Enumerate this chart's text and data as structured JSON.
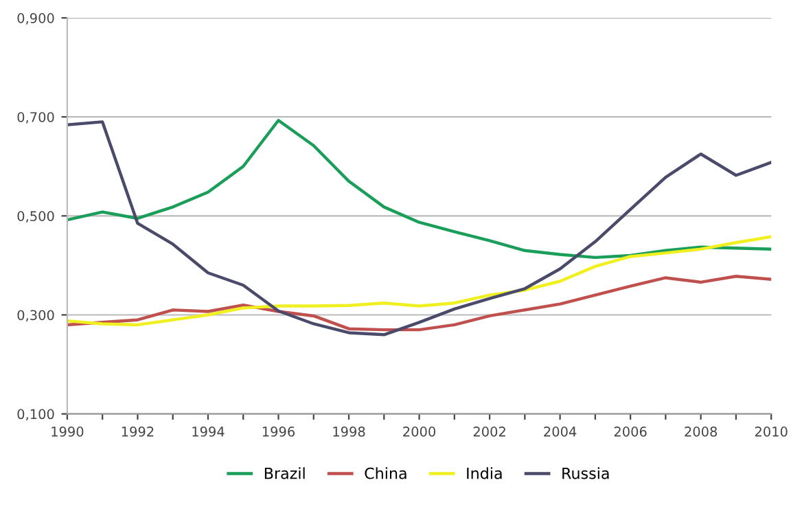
{
  "chart_data": {
    "type": "line",
    "x": [
      1990,
      1991,
      1992,
      1993,
      1994,
      1995,
      1996,
      1997,
      1998,
      1999,
      2000,
      2001,
      2002,
      2003,
      2004,
      2005,
      2006,
      2007,
      2008,
      2009,
      2010
    ],
    "series": [
      {
        "name": "Brazil",
        "color": "#1a9e5a",
        "values": [
          0.492,
          0.508,
          0.495,
          0.518,
          0.548,
          0.6,
          0.693,
          0.642,
          0.57,
          0.518,
          0.487,
          0.468,
          0.45,
          0.43,
          0.422,
          0.416,
          0.42,
          0.43,
          0.437,
          0.435,
          0.433
        ]
      },
      {
        "name": "China",
        "color": "#c0504d",
        "values": [
          0.28,
          0.285,
          0.29,
          0.31,
          0.307,
          0.32,
          0.307,
          0.298,
          0.272,
          0.27,
          0.27,
          0.28,
          0.298,
          0.31,
          0.322,
          0.34,
          0.358,
          0.375,
          0.366,
          0.378,
          0.372
        ]
      },
      {
        "name": "India",
        "color": "#f0f020",
        "values": [
          0.288,
          0.282,
          0.28,
          0.29,
          0.3,
          0.314,
          0.318,
          0.318,
          0.319,
          0.324,
          0.318,
          0.324,
          0.34,
          0.35,
          0.368,
          0.398,
          0.418,
          0.425,
          0.433,
          0.446,
          0.458
        ]
      },
      {
        "name": "Russia",
        "color": "#4a4a6a",
        "values": [
          0.684,
          0.69,
          0.485,
          0.443,
          0.385,
          0.36,
          0.308,
          0.282,
          0.264,
          0.26,
          0.285,
          0.312,
          0.333,
          0.353,
          0.393,
          0.448,
          0.513,
          0.578,
          0.625,
          0.582,
          0.608
        ]
      }
    ],
    "xlim": [
      1990,
      2010
    ],
    "xticks": [
      1990,
      {
        "value": 1991,
        "label": null
      },
      1992,
      {
        "value": 1993,
        "label": null
      },
      1994,
      {
        "value": 1995,
        "label": null
      },
      1996,
      {
        "value": 1997,
        "label": null
      },
      1998,
      {
        "value": 1999,
        "label": null
      },
      2000,
      {
        "value": 2001,
        "label": null
      },
      2002,
      {
        "value": 2003,
        "label": null
      },
      2004,
      {
        "value": 2005,
        "label": null
      },
      2006,
      {
        "value": 2007,
        "label": null
      },
      2008,
      {
        "value": 2009,
        "label": null
      },
      2010
    ],
    "ylim": [
      0.1,
      0.9
    ],
    "yticks": [
      {
        "value": 0.1,
        "label": "0,100"
      },
      {
        "value": 0.3,
        "label": "0,300"
      },
      {
        "value": 0.5,
        "label": "0,500"
      },
      {
        "value": 0.7,
        "label": "0,700"
      },
      {
        "value": 0.9,
        "label": "0,900"
      }
    ],
    "grid": "y",
    "legend": "bottom",
    "marker": "none",
    "line_style": "solid"
  }
}
